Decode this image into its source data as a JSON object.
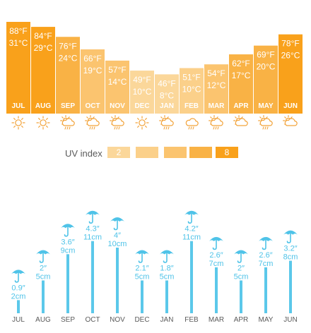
{
  "chart_data": [
    {
      "type": "bar",
      "categories": [
        "JUL",
        "AUG",
        "SEP",
        "OCT",
        "NOV",
        "DEC",
        "JAN",
        "FEB",
        "MAR",
        "APR",
        "MAY",
        "JUN"
      ],
      "series": [
        {
          "values": [
            88,
            84,
            76,
            66,
            57,
            49,
            46,
            51,
            54,
            62,
            69,
            78
          ],
          "unit": "°F"
        },
        {
          "values": [
            31,
            29,
            24,
            19,
            14,
            10,
            8,
            10,
            12,
            17,
            20,
            26
          ],
          "unit": "°C"
        }
      ],
      "uv_index": [
        8,
        8,
        7,
        5,
        4,
        2,
        2,
        3,
        5,
        6,
        7,
        8
      ],
      "weather_icons": [
        "sun-icon",
        "sun-icon",
        "sun-rain-icon",
        "sun-rain-icon",
        "sun-rain-icon",
        "sun-icon",
        "sun-rain-icon",
        "rain-cloud-icon",
        "sun-rain-icon",
        "sun-cloud-icon",
        "sun-rain-icon",
        "sun-cloud-icon"
      ]
    },
    {
      "type": "bar",
      "categories": [
        "JUL",
        "AUG",
        "SEP",
        "OCT",
        "NOV",
        "DEC",
        "JAN",
        "FEB",
        "MAR",
        "APR",
        "MAY",
        "JUN"
      ],
      "series": [
        {
          "values": [
            0.9,
            2.0,
            3.6,
            4.3,
            4.0,
            2.1,
            1.8,
            4.2,
            2.6,
            2.0,
            2.6,
            3.2
          ],
          "unit": "″"
        },
        {
          "values": [
            2,
            5,
            9,
            11,
            10,
            5,
            5,
            11,
            7,
            5,
            7,
            8
          ],
          "unit": "cm"
        }
      ],
      "ylim": [
        0,
        11
      ]
    }
  ],
  "uv_legend": {
    "label": "UV index",
    "values": [
      "2",
      "",
      "",
      "",
      "8"
    ],
    "colors": [
      "#fbd79a",
      "#fbd08a",
      "#fbc46f",
      "#f9b245",
      "#f9a11b"
    ]
  },
  "colors": {
    "uv_scale": {
      "2": "#fbd79a",
      "3": "#fbd08a",
      "4": "#fbc46f",
      "5": "#fbc46f",
      "6": "#f9b245",
      "7": "#f9b245",
      "8": "#f9a11b"
    },
    "icon": "#f2a33a",
    "rain": "#4fc3e8",
    "rain_bar": "#5bc8ea"
  }
}
